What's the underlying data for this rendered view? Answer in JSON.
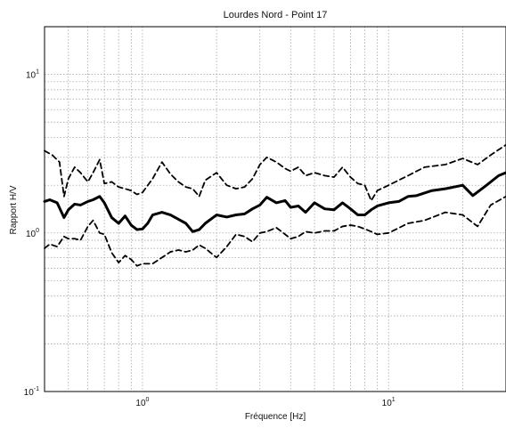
{
  "chart_data": {
    "type": "line",
    "title": "Lourdes Nord - Point 17",
    "xlabel": "Fréquence [Hz]",
    "ylabel": "Rapport H/V",
    "x_scale": "log",
    "y_scale": "log",
    "xlim": [
      0.4,
      30
    ],
    "ylim": [
      0.1,
      20
    ],
    "x_tick_labels": [
      {
        "base": "10",
        "exp": "0"
      },
      {
        "base": "10",
        "exp": "1"
      }
    ],
    "y_tick_labels": [
      {
        "base": "10",
        "exp": "1"
      },
      {
        "base": "10",
        "exp": "0"
      },
      {
        "base": "10",
        "exp": "-1"
      }
    ],
    "grid": true,
    "series": [
      {
        "style": "solid",
        "x": [
          0.4,
          0.42,
          0.45,
          0.48,
          0.5,
          0.53,
          0.56,
          0.6,
          0.63,
          0.67,
          0.7,
          0.75,
          0.8,
          0.85,
          0.9,
          0.95,
          1.0,
          1.05,
          1.1,
          1.2,
          1.3,
          1.4,
          1.5,
          1.6,
          1.7,
          1.8,
          2.0,
          2.2,
          2.4,
          2.6,
          2.8,
          3.0,
          3.2,
          3.5,
          3.8,
          4.0,
          4.3,
          4.6,
          5.0,
          5.5,
          6.0,
          6.5,
          7.0,
          7.5,
          8.0,
          8.5,
          9.0,
          10.0,
          11.0,
          12.0,
          13.0,
          15.0,
          17.0,
          20.0,
          22.0,
          25.0,
          28.0,
          30.0
        ],
        "y": [
          1.58,
          1.62,
          1.55,
          1.25,
          1.4,
          1.52,
          1.5,
          1.58,
          1.62,
          1.7,
          1.55,
          1.25,
          1.15,
          1.28,
          1.12,
          1.05,
          1.06,
          1.15,
          1.3,
          1.35,
          1.3,
          1.22,
          1.15,
          1.02,
          1.05,
          1.15,
          1.3,
          1.26,
          1.3,
          1.32,
          1.42,
          1.5,
          1.68,
          1.55,
          1.6,
          1.45,
          1.48,
          1.35,
          1.55,
          1.42,
          1.4,
          1.55,
          1.42,
          1.3,
          1.3,
          1.4,
          1.48,
          1.55,
          1.58,
          1.7,
          1.72,
          1.85,
          1.9,
          2.0,
          1.72,
          2.0,
          2.3,
          2.4
        ]
      },
      {
        "style": "dashed",
        "x": [
          0.4,
          0.43,
          0.46,
          0.48,
          0.5,
          0.53,
          0.56,
          0.6,
          0.63,
          0.67,
          0.7,
          0.75,
          0.8,
          0.85,
          0.9,
          0.95,
          1.0,
          1.1,
          1.2,
          1.3,
          1.4,
          1.5,
          1.6,
          1.7,
          1.8,
          2.0,
          2.2,
          2.4,
          2.6,
          2.8,
          3.0,
          3.2,
          3.5,
          3.8,
          4.0,
          4.3,
          4.6,
          5.0,
          5.5,
          6.0,
          6.5,
          7.0,
          7.5,
          8.0,
          8.5,
          9.0,
          10.0,
          12.0,
          14.0,
          17.0,
          20.0,
          23.0,
          26.0,
          30.0
        ],
        "y": [
          3.3,
          3.1,
          2.8,
          1.7,
          2.2,
          2.6,
          2.4,
          2.1,
          2.4,
          2.9,
          2.05,
          2.1,
          1.95,
          1.9,
          1.85,
          1.75,
          1.8,
          2.2,
          2.8,
          2.35,
          2.1,
          1.95,
          1.9,
          1.7,
          2.15,
          2.4,
          2.0,
          1.9,
          1.95,
          2.2,
          2.7,
          3.0,
          2.8,
          2.55,
          2.45,
          2.6,
          2.3,
          2.4,
          2.3,
          2.25,
          2.6,
          2.25,
          2.05,
          2.0,
          1.6,
          1.85,
          2.0,
          2.3,
          2.6,
          2.7,
          2.95,
          2.7,
          3.1,
          3.6
        ]
      },
      {
        "style": "dashed",
        "x": [
          0.4,
          0.42,
          0.45,
          0.48,
          0.5,
          0.53,
          0.56,
          0.6,
          0.63,
          0.67,
          0.7,
          0.75,
          0.8,
          0.85,
          0.9,
          0.95,
          1.0,
          1.1,
          1.2,
          1.3,
          1.4,
          1.5,
          1.6,
          1.7,
          1.8,
          2.0,
          2.2,
          2.4,
          2.6,
          2.8,
          3.0,
          3.2,
          3.5,
          3.8,
          4.0,
          4.3,
          4.6,
          5.0,
          5.5,
          6.0,
          6.5,
          7.0,
          7.5,
          8.0,
          8.5,
          9.0,
          10.0,
          12.0,
          14.0,
          17.0,
          20.0,
          23.0,
          26.0,
          30.0
        ],
        "y": [
          0.8,
          0.85,
          0.82,
          0.95,
          0.92,
          0.92,
          0.9,
          1.1,
          1.2,
          1.0,
          0.98,
          0.75,
          0.65,
          0.72,
          0.68,
          0.62,
          0.64,
          0.64,
          0.7,
          0.76,
          0.78,
          0.76,
          0.78,
          0.84,
          0.8,
          0.7,
          0.82,
          0.98,
          0.95,
          0.88,
          1.0,
          1.02,
          1.08,
          0.98,
          0.92,
          0.95,
          1.02,
          1.0,
          1.03,
          1.03,
          1.1,
          1.12,
          1.1,
          1.06,
          1.02,
          0.98,
          1.0,
          1.15,
          1.2,
          1.35,
          1.3,
          1.1,
          1.5,
          1.7
        ]
      }
    ]
  }
}
